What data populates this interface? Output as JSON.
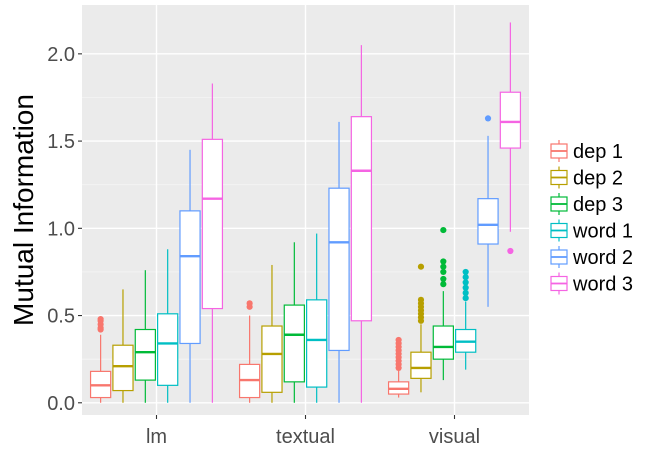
{
  "chart_data": {
    "type": "boxplot",
    "ylabel": "Mutual Information",
    "xlabel": "",
    "ylim": [
      -0.07,
      2.28
    ],
    "yticks": [
      0.0,
      0.5,
      1.0,
      1.5,
      2.0
    ],
    "ytick_labels": [
      "0.0",
      "0.5",
      "1.0",
      "1.5",
      "2.0"
    ],
    "categories": [
      "lm",
      "textual",
      "visual"
    ],
    "legend_position": "right",
    "grid": true,
    "background": "#ebebeb",
    "series": [
      {
        "name": "dep 1",
        "color": "#f8766d",
        "boxes": [
          {
            "category": "lm",
            "whisker_low": 0.0,
            "q1": 0.03,
            "median": 0.1,
            "q3": 0.18,
            "whisker_high": 0.39,
            "outliers": [
              0.42,
              0.43,
              0.45,
              0.47,
              0.48
            ]
          },
          {
            "category": "textual",
            "whisker_low": 0.0,
            "q1": 0.03,
            "median": 0.13,
            "q3": 0.22,
            "whisker_high": 0.5,
            "outliers": [
              0.55,
              0.57
            ]
          },
          {
            "category": "visual",
            "whisker_low": 0.03,
            "q1": 0.05,
            "median": 0.08,
            "q3": 0.12,
            "whisker_high": 0.19,
            "outliers": [
              0.2,
              0.22,
              0.24,
              0.26,
              0.28,
              0.3,
              0.32,
              0.34,
              0.36
            ]
          }
        ]
      },
      {
        "name": "dep 2",
        "color": "#b79f00",
        "boxes": [
          {
            "category": "lm",
            "whisker_low": 0.0,
            "q1": 0.07,
            "median": 0.21,
            "q3": 0.33,
            "whisker_high": 0.65,
            "outliers": []
          },
          {
            "category": "textual",
            "whisker_low": 0.0,
            "q1": 0.06,
            "median": 0.28,
            "q3": 0.44,
            "whisker_high": 0.79,
            "outliers": []
          },
          {
            "category": "visual",
            "whisker_low": 0.06,
            "q1": 0.14,
            "median": 0.2,
            "q3": 0.29,
            "whisker_high": 0.45,
            "outliers": [
              0.47,
              0.49,
              0.51,
              0.53,
              0.55,
              0.57,
              0.59,
              0.78
            ]
          }
        ]
      },
      {
        "name": "dep 3",
        "color": "#00ba38",
        "boxes": [
          {
            "category": "lm",
            "whisker_low": 0.0,
            "q1": 0.13,
            "median": 0.29,
            "q3": 0.42,
            "whisker_high": 0.76,
            "outliers": []
          },
          {
            "category": "textual",
            "whisker_low": 0.0,
            "q1": 0.12,
            "median": 0.39,
            "q3": 0.56,
            "whisker_high": 0.92,
            "outliers": []
          },
          {
            "category": "visual",
            "whisker_low": 0.13,
            "q1": 0.25,
            "median": 0.32,
            "q3": 0.44,
            "whisker_high": 0.64,
            "outliers": [
              0.68,
              0.71,
              0.75,
              0.78,
              0.81,
              0.99
            ]
          }
        ]
      },
      {
        "name": "word 1",
        "color": "#00bfc4",
        "boxes": [
          {
            "category": "lm",
            "whisker_low": 0.0,
            "q1": 0.1,
            "median": 0.34,
            "q3": 0.51,
            "whisker_high": 0.88,
            "outliers": []
          },
          {
            "category": "textual",
            "whisker_low": 0.0,
            "q1": 0.09,
            "median": 0.36,
            "q3": 0.59,
            "whisker_high": 0.97,
            "outliers": []
          },
          {
            "category": "visual",
            "whisker_low": 0.19,
            "q1": 0.29,
            "median": 0.35,
            "q3": 0.42,
            "whisker_high": 0.58,
            "outliers": [
              0.6,
              0.63,
              0.66,
              0.69,
              0.72,
              0.75
            ]
          }
        ]
      },
      {
        "name": "word 2",
        "color": "#619cff",
        "boxes": [
          {
            "category": "lm",
            "whisker_low": 0.0,
            "q1": 0.34,
            "median": 0.84,
            "q3": 1.1,
            "whisker_high": 1.45,
            "outliers": []
          },
          {
            "category": "textual",
            "whisker_low": 0.0,
            "q1": 0.3,
            "median": 0.92,
            "q3": 1.23,
            "whisker_high": 1.61,
            "outliers": []
          },
          {
            "category": "visual",
            "whisker_low": 0.55,
            "q1": 0.91,
            "median": 1.02,
            "q3": 1.17,
            "whisker_high": 1.53,
            "outliers": [
              1.63
            ]
          }
        ]
      },
      {
        "name": "word 3",
        "color": "#f564e3",
        "boxes": [
          {
            "category": "lm",
            "whisker_low": 0.0,
            "q1": 0.54,
            "median": 1.17,
            "q3": 1.51,
            "whisker_high": 1.83,
            "outliers": []
          },
          {
            "category": "textual",
            "whisker_low": 0.0,
            "q1": 0.47,
            "median": 1.33,
            "q3": 1.64,
            "whisker_high": 2.05,
            "outliers": []
          },
          {
            "category": "visual",
            "whisker_low": 0.98,
            "q1": 1.46,
            "median": 1.61,
            "q3": 1.78,
            "whisker_high": 2.18,
            "outliers": [
              0.87
            ]
          }
        ]
      }
    ]
  }
}
